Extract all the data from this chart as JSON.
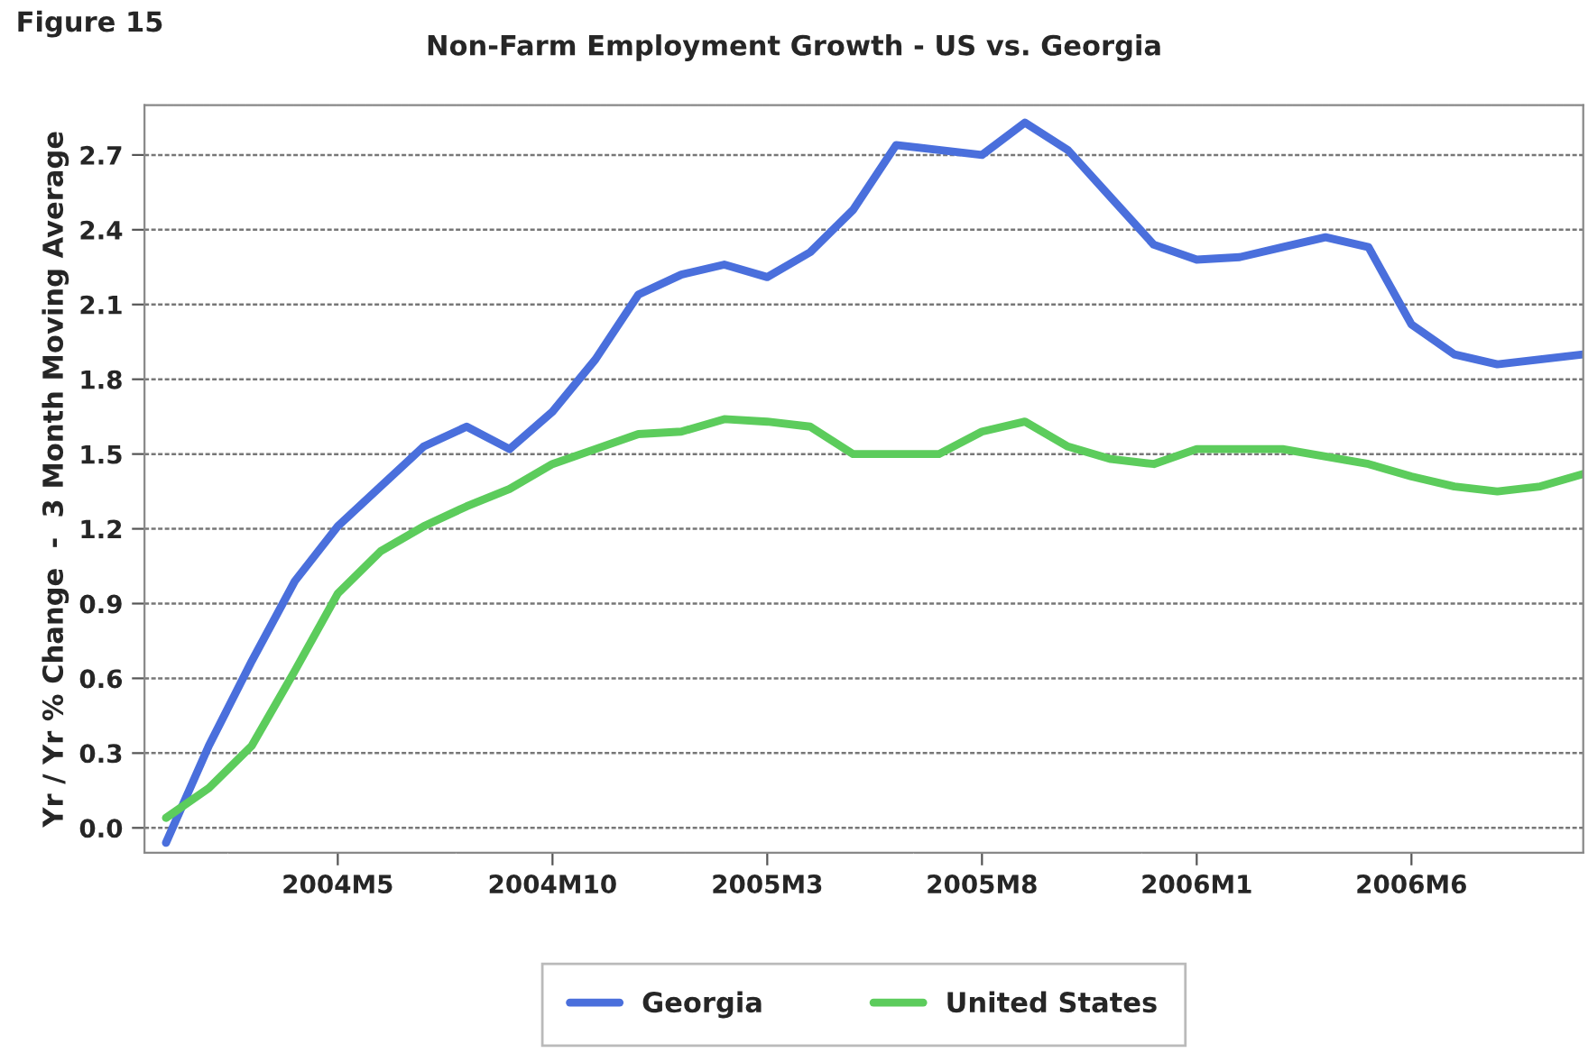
{
  "chart_data": {
    "type": "line",
    "title": "Non-Farm Employment Growth - US vs. Georgia",
    "ylabel": "Yr / Yr % Change  -  3 Month Moving Average",
    "annotations": [
      "Figure 15"
    ],
    "categories": [
      null,
      null,
      null,
      null,
      "2004M5",
      null,
      null,
      null,
      null,
      "2004M10",
      null,
      null,
      null,
      null,
      "2005M3",
      null,
      null,
      null,
      null,
      "2005M8",
      null,
      null,
      null,
      null,
      "2006M1",
      null,
      null,
      null,
      null,
      "2006M6",
      null,
      null,
      null,
      null
    ],
    "series": [
      {
        "name": "Georgia",
        "color": "#4a6fdc",
        "values": [
          -0.06,
          0.33,
          0.67,
          0.99,
          1.21,
          1.37,
          1.53,
          1.61,
          1.52,
          1.67,
          1.88,
          2.14,
          2.22,
          2.26,
          2.21,
          2.31,
          2.48,
          2.74,
          2.72,
          2.7,
          2.83,
          2.72,
          2.53,
          2.34,
          2.28,
          2.29,
          2.33,
          2.37,
          2.33,
          2.02,
          1.9,
          1.86,
          1.88,
          1.9
        ]
      },
      {
        "name": "United States",
        "color": "#5ccc5c",
        "values": [
          0.04,
          0.16,
          0.33,
          0.63,
          0.94,
          1.11,
          1.21,
          1.29,
          1.36,
          1.46,
          1.52,
          1.58,
          1.59,
          1.64,
          1.63,
          1.61,
          1.5,
          1.5,
          1.5,
          1.59,
          1.63,
          1.53,
          1.48,
          1.46,
          1.52,
          1.52,
          1.52,
          1.49,
          1.46,
          1.41,
          1.37,
          1.35,
          1.37,
          1.42
        ]
      }
    ],
    "ylim": [
      -0.1,
      2.9
    ],
    "yticks": [
      {
        "value": 0,
        "label": "0.0"
      },
      0.3,
      0.6,
      0.9,
      1.2,
      1.5,
      1.8,
      2.1,
      2.4,
      2.7
    ],
    "grid": "y",
    "legend": "bottom",
    "marker": "none",
    "line_style": "solid"
  }
}
